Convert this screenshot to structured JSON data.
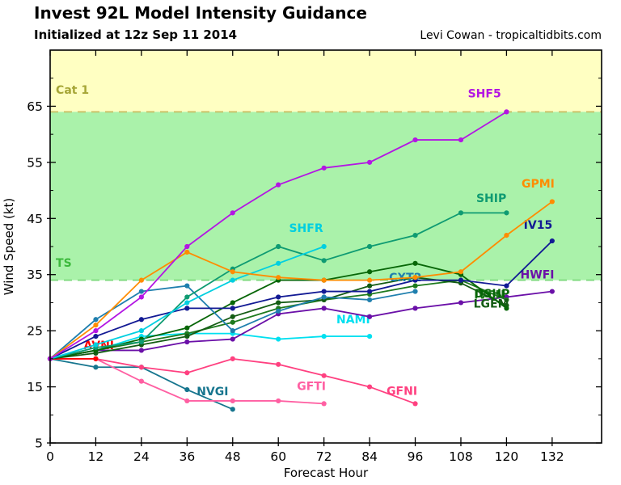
{
  "header": {
    "title": "Invest 92L Model Intensity Guidance",
    "subtitle": "Initialized at 12z Sep 11 2014",
    "credit": "Levi Cowan - tropicaltidbits.com"
  },
  "chart_data": {
    "type": "line",
    "title": "Invest 92L Model Intensity Guidance",
    "xlabel": "Forecast Hour",
    "ylabel": "Wind Speed (kt)",
    "xlim": [
      0,
      145
    ],
    "ylim": [
      5,
      75
    ],
    "xticks": [
      0,
      12,
      24,
      36,
      48,
      60,
      72,
      84,
      96,
      108,
      120,
      132
    ],
    "yticks_major": [
      5,
      15,
      25,
      35,
      45,
      55,
      65
    ],
    "yticks_minor": [
      10,
      20,
      30,
      40,
      50,
      60,
      70
    ],
    "grid": false,
    "legend_position": "inline-labels",
    "bands": [
      {
        "name": "hurricane-cat1",
        "from": 64,
        "to": 75,
        "color": "#ffffc2"
      },
      {
        "name": "tropical-storm",
        "from": 34,
        "to": 64,
        "color": "#aaf2aa"
      }
    ],
    "thresholds": [
      {
        "label": "Cat 1",
        "value": 64,
        "line_color": "#c9bc62",
        "text_color": "#a6a636",
        "label_h": 1.5,
        "label_v": 67.2
      },
      {
        "label": "TS",
        "value": 34,
        "line_color": "#7bd87b",
        "text_color": "#3cb93c",
        "label_h": 1.5,
        "label_v": 36.4
      }
    ],
    "series": [
      {
        "name": "NVGI",
        "color": "#16758e",
        "hours": [
          0,
          12,
          24,
          36,
          48
        ],
        "values": [
          20,
          18.5,
          18.5,
          14.5,
          11
        ],
        "label": {
          "h": 42.7,
          "v": 13.5
        }
      },
      {
        "name": "GFTI",
        "color": "#ff5fa2",
        "hours": [
          0,
          12,
          24,
          36,
          48,
          60,
          72
        ],
        "values": [
          20,
          20,
          16,
          12.5,
          12.5,
          12.5,
          12
        ],
        "label": {
          "h": 68.7,
          "v": 14.4
        }
      },
      {
        "name": "GFNI",
        "color": "#ff4080",
        "hours": [
          0,
          12,
          24,
          36,
          48,
          60,
          72,
          84,
          96
        ],
        "values": [
          20,
          20,
          18.5,
          17.5,
          20,
          19,
          17,
          15,
          12
        ],
        "label": {
          "h": 92.5,
          "v": 13.6
        }
      },
      {
        "name": "AVNI",
        "color": "#ff0000",
        "hours": [
          0,
          12
        ],
        "values": [
          20,
          20
        ],
        "label": {
          "h": 12.8,
          "v": 21.7
        }
      },
      {
        "name": "NAMI",
        "color": "#00e0f0",
        "hours": [
          0,
          12,
          24,
          36,
          48,
          60,
          72,
          84
        ],
        "values": [
          20,
          21.5,
          24,
          24.5,
          24.5,
          23.5,
          24,
          24
        ],
        "label": {
          "h": 79.7,
          "v": 26.3
        }
      },
      {
        "name": "HWFI",
        "color": "#6b10a8",
        "hours": [
          0,
          12,
          24,
          36,
          48,
          60,
          72,
          84,
          96,
          108,
          120,
          132
        ],
        "values": [
          20,
          21.5,
          21.5,
          23,
          23.5,
          28,
          29,
          27.5,
          29,
          30,
          31,
          32
        ],
        "label": {
          "h": 128.1,
          "v": 34.3
        }
      },
      {
        "name": "IVCN",
        "color": "#1e7a1e",
        "hours": [
          0,
          12,
          24,
          36,
          48,
          60,
          72,
          84,
          96,
          108,
          120
        ],
        "values": [
          20,
          21.5,
          23,
          24.5,
          26.5,
          29,
          30.5,
          31.5,
          33,
          34,
          30.5
        ],
        "label": {
          "h": 115.5,
          "v": 30.7
        }
      },
      {
        "name": "LGEM",
        "color": "#145c14",
        "hours": [
          0,
          12,
          24,
          36,
          48,
          60,
          72,
          84,
          96,
          108,
          120
        ],
        "values": [
          20,
          21,
          22.5,
          24,
          27.5,
          30,
          30.5,
          33,
          34.5,
          33.5,
          29.5
        ],
        "label": {
          "h": 116,
          "v": 29.1
        }
      },
      {
        "name": "DSHP",
        "color": "#076607",
        "hours": [
          0,
          12,
          24,
          36,
          48,
          60,
          72,
          84,
          96,
          108,
          120
        ],
        "values": [
          20,
          21.5,
          23.5,
          25.5,
          30,
          34,
          34,
          35.5,
          37,
          35,
          29
        ],
        "label": {
          "h": 116.2,
          "v": 30.9
        }
      },
      {
        "name": "CXT2",
        "color": "#1f7fae",
        "hours": [
          0,
          12,
          24,
          36,
          48,
          60,
          72,
          84,
          96
        ],
        "values": [
          20,
          27,
          32,
          33,
          25,
          28.5,
          31,
          30.5,
          32
        ],
        "label": {
          "h": 93.4,
          "v": 33.8
        }
      },
      {
        "name": "IV15",
        "color": "#121a94",
        "hours": [
          0,
          12,
          24,
          36,
          48,
          60,
          72,
          84,
          96,
          108,
          120,
          132
        ],
        "values": [
          20,
          24,
          27,
          29,
          29,
          31,
          32,
          32,
          34,
          34,
          33,
          41
        ],
        "label": {
          "h": 128.3,
          "v": 43.2
        }
      },
      {
        "name": "SHIP",
        "color": "#0f9b72",
        "hours": [
          0,
          12,
          24,
          36,
          48,
          60,
          72,
          84,
          96,
          108,
          120
        ],
        "values": [
          20,
          22,
          23,
          31,
          36,
          40,
          37.5,
          40,
          42,
          46,
          46
        ],
        "label": {
          "h": 116,
          "v": 47.9
        }
      },
      {
        "name": "SHFR",
        "color": "#00cfe0",
        "hours": [
          0,
          12,
          24,
          36,
          48,
          60,
          72
        ],
        "values": [
          20,
          22.5,
          25,
          30,
          34,
          37,
          40
        ],
        "label": {
          "h": 67.3,
          "v": 42.6
        }
      },
      {
        "name": "GPMI",
        "color": "#ff8c00",
        "hours": [
          0,
          12,
          24,
          36,
          48,
          60,
          72,
          84,
          96,
          108,
          120,
          132
        ],
        "values": [
          20,
          26,
          34,
          39,
          35.5,
          34.5,
          34,
          34,
          34.5,
          35.5,
          42,
          48
        ],
        "label": {
          "h": 128.3,
          "v": 50.5
        }
      },
      {
        "name": "SHF5",
        "color": "#b316e3",
        "hours": [
          0,
          12,
          24,
          36,
          48,
          60,
          72,
          84,
          96,
          108,
          120
        ],
        "values": [
          20,
          25,
          31,
          40,
          46,
          51,
          54,
          55,
          59,
          59,
          64
        ],
        "label": {
          "h": 114.2,
          "v": 66.6
        }
      }
    ]
  }
}
